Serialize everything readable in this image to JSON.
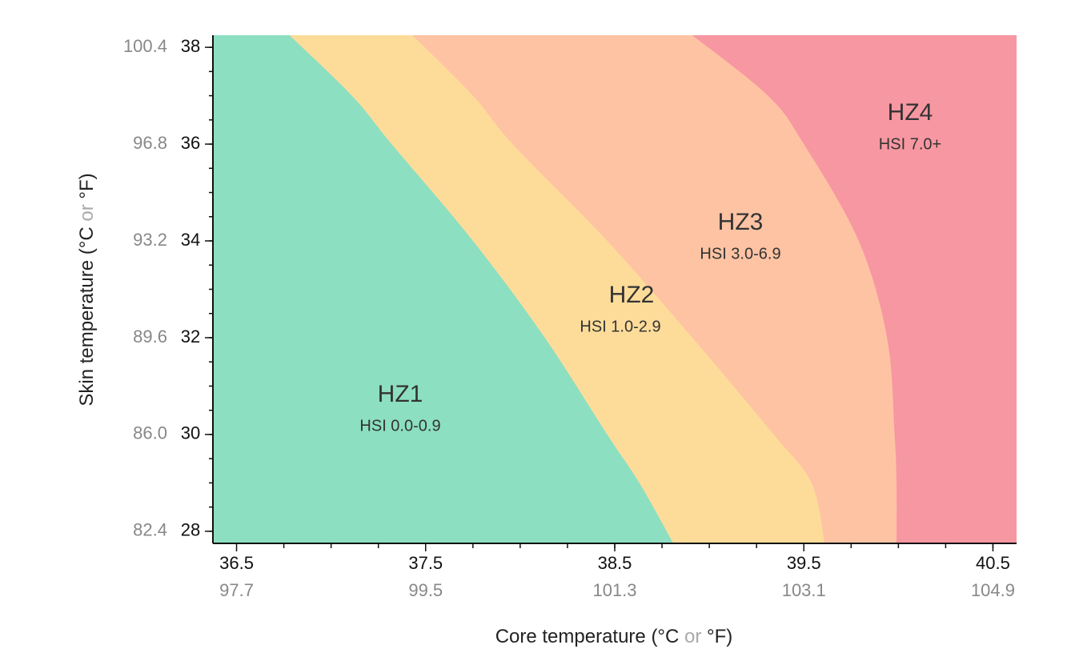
{
  "chart_data": {
    "type": "zones",
    "x_label": [
      "Core temperature (°C ",
      "or",
      " °F)"
    ],
    "y_label": [
      "Skin temperature (°C ",
      "or",
      " °F)"
    ],
    "xlim": [
      36.375,
      40.625
    ],
    "ylim": [
      27.75,
      38.25
    ],
    "xticks": [
      36.5,
      37.5,
      38.5,
      39.5,
      40.5
    ],
    "xtick_labels_f": [
      "97.7",
      "99.5",
      "101.3",
      "103.1",
      "104.9"
    ],
    "yticks": [
      28,
      30,
      32,
      34,
      36,
      38
    ],
    "ytick_labels_f": [
      "82.4",
      "86.0",
      "89.6",
      "93.2",
      "96.8",
      "100.4"
    ],
    "xminor_step": 0.25,
    "yminor_step": 0.5,
    "skin": [
      38.25,
      37,
      36,
      34,
      32,
      30,
      29,
      27.75
    ],
    "boundaries": [
      [
        36.78,
        37.11,
        37.32,
        37.75,
        38.13,
        38.46,
        38.63,
        38.81
      ],
      [
        37.43,
        37.75,
        37.96,
        38.46,
        38.91,
        39.34,
        39.54,
        39.61
      ],
      [
        38.91,
        39.31,
        39.5,
        39.79,
        39.94,
        39.98,
        39.99,
        39.99
      ]
    ],
    "zones": [
      {
        "name": "HZ1",
        "label": "HSI 0.0-0.9",
        "color": "#8cdfc1"
      },
      {
        "name": "HZ2",
        "label": "HSI 1.0-2.9",
        "color": "#fddc9a"
      },
      {
        "name": "HZ3",
        "label": "HSI 3.0-6.9",
        "color": "#fec3a3"
      },
      {
        "name": "HZ4",
        "label": "HSI 7.0+",
        "color": "#f797a2"
      }
    ]
  }
}
